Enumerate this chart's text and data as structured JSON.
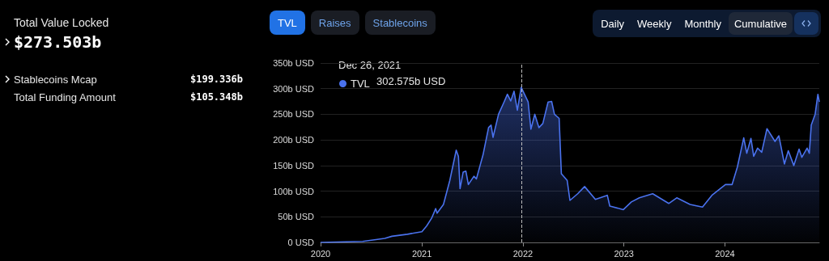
{
  "chart_data": [
    {
      "type": "other",
      "title": "Total Value Locked",
      "subtitle": "$273.503b",
      "annotations": [
        "Stablecoins Mcap",
        "$199.336b",
        "Total Funding Amount",
        "$105.348b"
      ]
    },
    {
      "type": "area",
      "grid": "y",
      "legend": "top left",
      "legend_title": "Dec 26, 2021",
      "marker": "none",
      "annotations": [
        "302.575b USD",
        "TVL",
        "Raises",
        "Stablecoins",
        "Daily",
        "Weekly",
        "Monthly",
        "Cumulative"
      ],
      "ref_lines": [
        {
          "axis": "x",
          "value": "2021-12-26",
          "line_style": "dashed",
          "color": "#bbbbbb"
        }
      ],
      "xlim": [
        "2020-01-01",
        "2024-12-07"
      ],
      "xticks": [
        "2020",
        "2021",
        "2022",
        "2023",
        "2024"
      ],
      "ylim": [
        0,
        350
      ],
      "yticks": [
        {
          "value": 0,
          "label": "0 USD"
        },
        {
          "value": 50,
          "label": "50b USD"
        },
        {
          "value": 100,
          "label": "100b USD"
        },
        {
          "value": 150,
          "label": "150b USD"
        },
        {
          "value": 200,
          "label": "200b USD"
        },
        {
          "value": 250,
          "label": "250b USD"
        },
        {
          "value": 300,
          "label": "300b USD"
        },
        {
          "value": 350,
          "label": "350b USD"
        }
      ],
      "series": [
        {
          "name": "TVL",
          "color": "#4a72ee",
          "x": [
            "2020-01-01",
            "2020-06-01",
            "2020-08-20",
            "2020-09-15",
            "2020-11-10",
            "2021-01-01",
            "2021-01-18",
            "2021-02-05",
            "2021-02-20",
            "2021-02-25",
            "2021-03-20",
            "2021-04-12",
            "2021-05-05",
            "2021-05-13",
            "2021-05-19",
            "2021-05-30",
            "2021-06-09",
            "2021-06-18",
            "2021-07-08",
            "2021-07-17",
            "2021-08-10",
            "2021-08-30",
            "2021-09-08",
            "2021-09-15",
            "2021-10-05",
            "2021-10-25",
            "2021-11-06",
            "2021-11-18",
            "2021-11-30",
            "2021-12-12",
            "2021-12-26",
            "2022-01-20",
            "2022-01-30",
            "2022-02-13",
            "2022-02-28",
            "2022-03-14",
            "2022-04-02",
            "2022-04-15",
            "2022-04-25",
            "2022-05-12",
            "2022-05-20",
            "2022-06-10",
            "2022-06-20",
            "2022-07-18",
            "2022-08-12",
            "2022-09-20",
            "2022-11-02",
            "2022-11-11",
            "2022-12-30",
            "2023-01-28",
            "2023-02-26",
            "2023-04-15",
            "2023-06-12",
            "2023-07-11",
            "2023-08-28",
            "2023-10-12",
            "2023-11-15",
            "2024-01-03",
            "2024-01-27",
            "2024-02-15",
            "2024-03-09",
            "2024-03-20",
            "2024-04-04",
            "2024-04-14",
            "2024-04-28",
            "2024-05-13",
            "2024-06-01",
            "2024-06-30",
            "2024-07-14",
            "2024-08-03",
            "2024-08-17",
            "2024-09-06",
            "2024-09-25",
            "2024-10-05",
            "2024-10-24",
            "2024-11-01",
            "2024-11-08",
            "2024-11-22",
            "2024-12-02",
            "2024-12-07"
          ],
          "values": [
            0,
            2,
            8,
            12,
            16,
            21,
            32,
            47,
            66,
            57,
            74,
            121,
            180,
            168,
            105,
            137,
            139,
            113,
            129,
            124,
            171,
            224,
            229,
            205,
            250,
            274,
            289,
            276,
            295,
            258,
            302.575,
            274,
            221,
            250,
            224,
            232,
            274,
            275,
            250,
            242,
            134,
            121,
            82,
            95,
            109,
            84,
            92,
            71,
            64,
            79,
            87,
            95,
            76,
            87,
            74,
            69,
            92,
            113,
            113,
            147,
            204,
            174,
            203,
            168,
            184,
            176,
            222,
            197,
            208,
            153,
            179,
            150,
            182,
            166,
            184,
            174,
            229,
            250,
            289,
            274
          ]
        }
      ]
    }
  ]
}
